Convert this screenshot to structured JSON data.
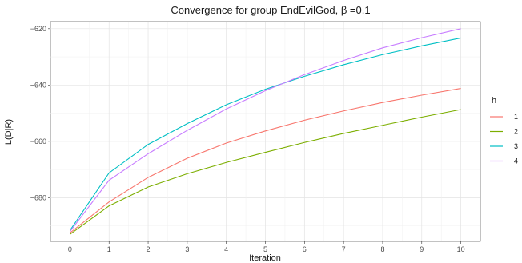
{
  "chart_data": {
    "type": "line",
    "title": "Convergence for group EndEvilGod,  β =0.1",
    "xlabel": "Iteration",
    "ylabel": "L(D|R)",
    "x": [
      0,
      1,
      2,
      3,
      4,
      5,
      6,
      7,
      8,
      9,
      10
    ],
    "xlim": [
      -0.5,
      10.5
    ],
    "ylim": [
      -695.5,
      -617.5
    ],
    "x_ticks": [
      "0",
      "1",
      "2",
      "3",
      "4",
      "5",
      "6",
      "7",
      "8",
      "9",
      "10"
    ],
    "y_ticks": [
      {
        "value": -620,
        "label": "−620"
      },
      {
        "value": -640,
        "label": "−640"
      },
      {
        "value": -660,
        "label": "−660"
      },
      {
        "value": -680,
        "label": "−680"
      }
    ],
    "grid": true,
    "legend": {
      "title": "h",
      "position": "right"
    },
    "series": [
      {
        "name": "1",
        "color": "#F8766D",
        "values": [
          -692.5,
          -681.5,
          -672.8,
          -666.0,
          -660.6,
          -656.3,
          -652.5,
          -649.2,
          -646.2,
          -643.6,
          -641.2
        ]
      },
      {
        "name": "2",
        "color": "#7CAE00",
        "values": [
          -693.0,
          -682.9,
          -676.2,
          -671.5,
          -667.5,
          -663.9,
          -660.4,
          -657.2,
          -654.3,
          -651.4,
          -648.7
        ]
      },
      {
        "name": "3",
        "color": "#00BFC4",
        "values": [
          -691.6,
          -671.2,
          -661.1,
          -653.7,
          -647.0,
          -641.5,
          -636.9,
          -632.8,
          -629.2,
          -626.1,
          -623.3
        ]
      },
      {
        "name": "4",
        "color": "#C77CFF",
        "values": [
          -692.0,
          -673.8,
          -664.4,
          -656.1,
          -648.5,
          -642.0,
          -636.3,
          -631.3,
          -626.8,
          -623.2,
          -620.0
        ]
      }
    ]
  }
}
